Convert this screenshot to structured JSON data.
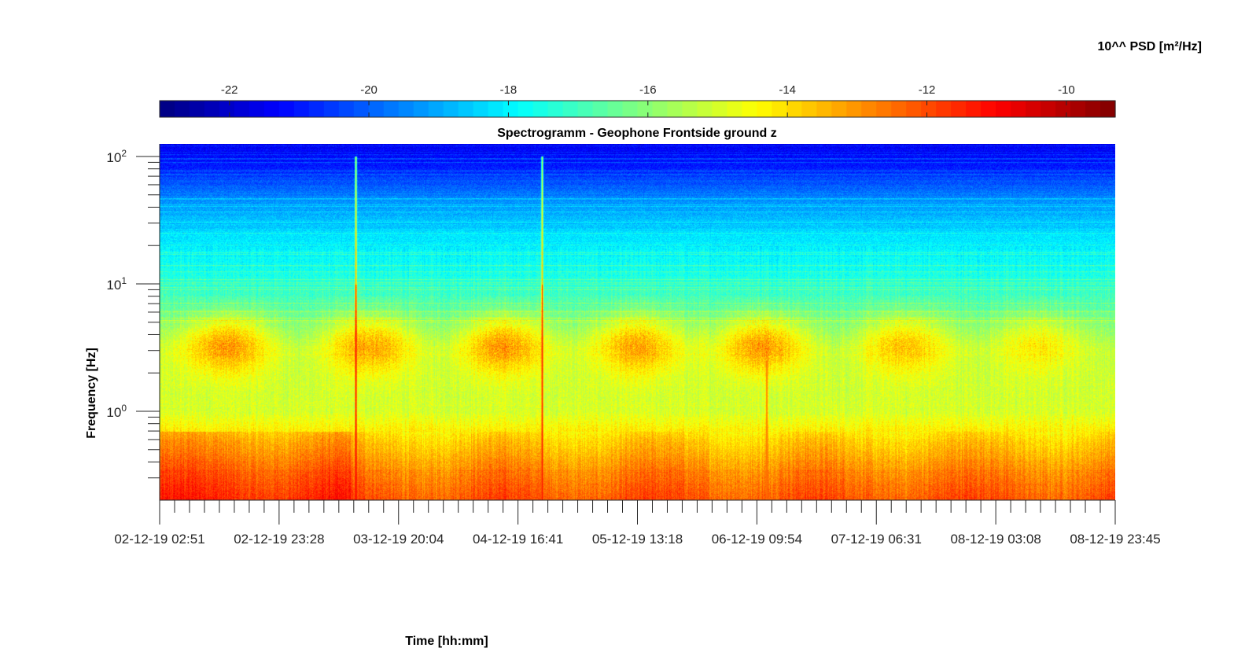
{
  "colorbar": {
    "title": "10^^ PSD [m²/Hz]",
    "ticks": [
      "-22",
      "-20",
      "-18",
      "-16",
      "-14",
      "-12",
      "-10"
    ],
    "tick_values": [
      -22,
      -20,
      -18,
      -16,
      -14,
      -12,
      -10
    ],
    "range": [
      -23.0,
      -9.3
    ],
    "colormap": "jet"
  },
  "chart_data": {
    "type": "heatmap",
    "title": "Spectrogramm - Geophone Frontside ground z",
    "xlabel": "Time [hh:mm]",
    "ylabel": "Frequency [Hz]",
    "yscale": "log",
    "ylim": [
      0.2,
      125
    ],
    "y_ticks": [
      {
        "base": "10",
        "exp": "2",
        "value": 100
      },
      {
        "base": "10",
        "exp": "1",
        "value": 10
      },
      {
        "base": "10",
        "exp": "0",
        "value": 1
      }
    ],
    "x_tick_labels": [
      "02-12-19 02:51",
      "02-12-19 23:28",
      "03-12-19 20:04",
      "04-12-19 16:41",
      "05-12-19 13:18",
      "06-12-19 09:54",
      "07-12-19 06:31",
      "08-12-19 03:08",
      "08-12-19 23:45"
    ],
    "value_label": "10^^ PSD [m²/Hz]",
    "description": "log10 PSD increases from ~-21 at 100 Hz to ~-12 below 0.5 Hz; daytime bursts around 3 Hz; two broadband transient spikes",
    "psd_profile": [
      {
        "freq": 125,
        "psd": -21.5
      },
      {
        "freq": 80,
        "psd": -20.8
      },
      {
        "freq": 50,
        "psd": -19.6
      },
      {
        "freq": 25,
        "psd": -18.3
      },
      {
        "freq": 10,
        "psd": -17.3
      },
      {
        "freq": 5,
        "psd": -16.2
      },
      {
        "freq": 3,
        "psd": -15.3
      },
      {
        "freq": 1,
        "psd": -15.0
      },
      {
        "freq": 0.6,
        "psd": -13.8
      },
      {
        "freq": 0.3,
        "psd": -12.6
      },
      {
        "freq": 0.2,
        "psd": -12.1
      }
    ],
    "daytime_bursts": [
      {
        "label": "02-12-19",
        "time_fraction": 0.07,
        "freq_range": [
          2,
          5
        ],
        "psd": -13.0
      },
      {
        "label": "03-12-19",
        "time_fraction": 0.22,
        "freq_range": [
          2,
          5
        ],
        "psd": -13.2
      },
      {
        "label": "04-12-19",
        "time_fraction": 0.36,
        "freq_range": [
          2,
          5
        ],
        "psd": -13.0
      },
      {
        "label": "05-12-19",
        "time_fraction": 0.5,
        "freq_range": [
          2,
          5
        ],
        "psd": -13.2
      },
      {
        "label": "06-12-19",
        "time_fraction": 0.63,
        "freq_range": [
          2,
          5
        ],
        "psd": -13.0
      },
      {
        "label": "07-12-19",
        "time_fraction": 0.78,
        "freq_range": [
          2,
          5
        ],
        "psd": -13.6
      },
      {
        "label": "08-12-19",
        "time_fraction": 0.92,
        "freq_range": [
          2,
          5
        ],
        "psd": -14.2
      }
    ],
    "transients": [
      {
        "time_fraction": 0.205,
        "freq_top": 100,
        "psd": -11.0
      },
      {
        "time_fraction": 0.4,
        "freq_top": 100,
        "psd": -11.3
      },
      {
        "time_fraction": 0.635,
        "freq_top": 2.5,
        "psd": -12.5
      }
    ]
  }
}
